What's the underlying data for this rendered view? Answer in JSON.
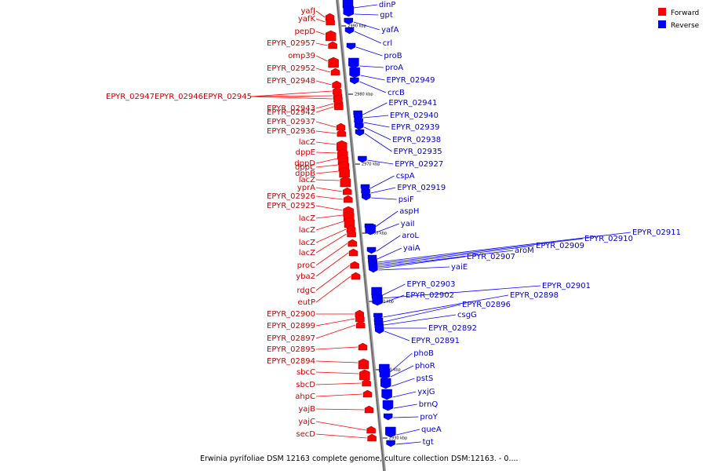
{
  "caption": "Erwinia pyrifoliae DSM 12163 complete genome, culture collection DSM:12163. - 0....",
  "legend": {
    "forward": {
      "label": "Forward",
      "color": "#ff0000"
    },
    "reverse": {
      "label": "Reverse",
      "color": "#0000ff"
    }
  },
  "ticks": [
    "2990 kbp",
    "2980 kbp",
    "2970 kbp",
    "2960 kbp",
    "2950 kbp",
    "2940 kbp",
    "2930 kbp"
  ],
  "forward_labels": [
    "yafJ",
    "yafK",
    "pepD",
    "EPYR_02957",
    "omp39",
    "EPYR_02952",
    "EPYR_02948",
    "EPYR_02947",
    "EPYR_02946",
    "EPYR_02945",
    "EPYR_02943",
    "EPYR_02942",
    "EPYR_02937",
    "EPYR_02936",
    "lacZ",
    "dppE",
    "dppD",
    "dppC",
    "dppB",
    "lacZ",
    "yprA",
    "EPYR_02926",
    "EPYR_02925",
    "lacZ",
    "lacZ",
    "lacZ",
    "lacZ",
    "proC",
    "yba2",
    "rdgC",
    "eutP",
    "EPYR_02900",
    "EPYR_02899",
    "EPYR_02897",
    "EPYR_02895",
    "EPYR_02894",
    "sbcC",
    "sbcD",
    "ahpC",
    "yajB",
    "yajC",
    "secD"
  ],
  "reverse_labels": [
    "dinP",
    "gpt",
    "yafA",
    "crl",
    "proB",
    "proA",
    "EPYR_02949",
    "crcB",
    "EPYR_02941",
    "EPYR_02940",
    "EPYR_02939",
    "EPYR_02938",
    "EPYR_02935",
    "EPYR_02927",
    "cspA",
    "EPYR_02919",
    "psiF",
    "aspH",
    "yaiI",
    "aroL",
    "yaiA",
    "EPYR_02911",
    "EPYR_02910",
    "EPYR_02909",
    "aroM",
    "EPYR_02907",
    "yaiE",
    "EPYR_02903",
    "EPYR_02901",
    "EPYR_02902",
    "EPYR_02898",
    "EPYR_02896",
    "csgG",
    "EPYR_02892",
    "EPYR_02891",
    "phoB",
    "phoR",
    "pstS",
    "yxjG",
    "brnQ",
    "proY",
    "queA",
    "tgt"
  ]
}
